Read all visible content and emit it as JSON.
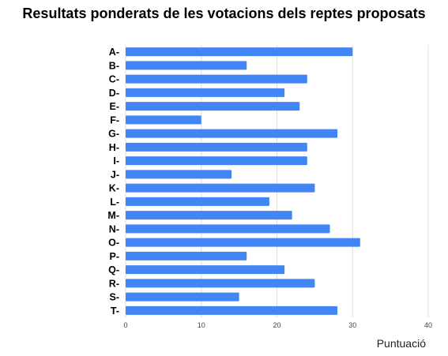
{
  "chart_data": {
    "type": "bar",
    "orientation": "horizontal",
    "title": "Resultats ponderats de les votacions dels reptes proposats",
    "xlabel": "Puntuació",
    "ylabel": "",
    "categories": [
      "A-",
      "B-",
      "C-",
      "D-",
      "E-",
      "F-",
      "G-",
      "H-",
      "I-",
      "J-",
      "K-",
      "L-",
      "M-",
      "N-",
      "O-",
      "P-",
      "Q-",
      "R-",
      "S-",
      "T-"
    ],
    "values": [
      30,
      16,
      24,
      21,
      23,
      10,
      28,
      24,
      24,
      14,
      25,
      19,
      22,
      27,
      31,
      16,
      21,
      25,
      15,
      28
    ],
    "xlim": [
      0,
      40
    ],
    "ticks": [
      "0",
      "10",
      "20",
      "30",
      "40"
    ],
    "grid": true,
    "legend": "none",
    "bar_color": "#4285f4",
    "grid_color": "#dddddd"
  }
}
